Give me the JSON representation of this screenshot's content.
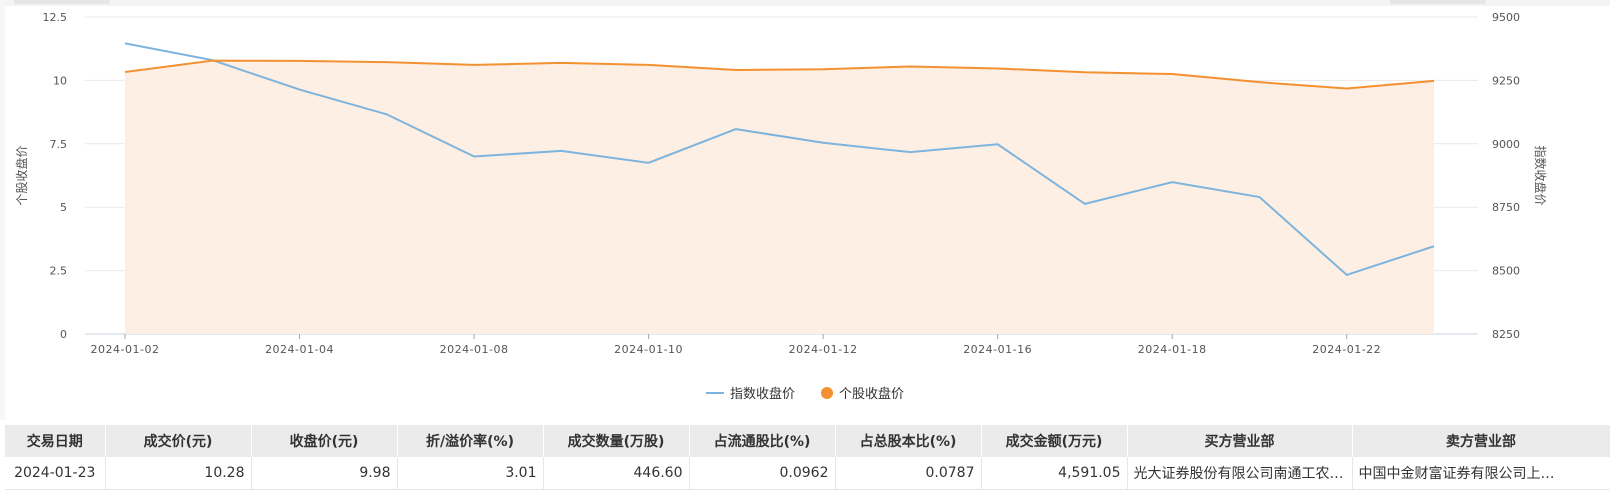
{
  "chart_data": {
    "type": "line",
    "x": [
      "2024-01-02",
      "2024-01-03",
      "2024-01-04",
      "2024-01-05",
      "2024-01-08",
      "2024-01-09",
      "2024-01-10",
      "2024-01-11",
      "2024-01-12",
      "2024-01-15",
      "2024-01-16",
      "2024-01-17",
      "2024-01-18",
      "2024-01-19",
      "2024-01-22",
      "2024-01-23"
    ],
    "x_tick_labels": [
      "2024-01-02",
      "2024-01-04",
      "2024-01-08",
      "2024-01-10",
      "2024-01-12",
      "2024-01-16",
      "2024-01-18",
      "2024-01-22"
    ],
    "series": [
      {
        "name": "指数收盘价",
        "axis": "right",
        "color": "#7db4de",
        "values": [
          9396,
          9330,
          9214,
          9116,
          8950,
          8972,
          8925,
          9058,
          9004,
          8967,
          8998,
          8763,
          8849,
          8790,
          8483,
          8596
        ]
      },
      {
        "name": "个股收盘价",
        "axis": "left",
        "color": "#f39132",
        "fill": "#fdefe3",
        "values": [
          10.33,
          10.78,
          10.77,
          10.72,
          10.61,
          10.69,
          10.61,
          10.41,
          10.44,
          10.55,
          10.47,
          10.32,
          10.25,
          9.93,
          9.68,
          9.98
        ]
      }
    ],
    "ylabel_left": "个股收盘价",
    "ylabel_right": "指数收盘价",
    "ylim_left": [
      0,
      12.5
    ],
    "ylim_right": [
      8250,
      9500
    ],
    "yticks_left": [
      "0",
      "2.5",
      "5",
      "7.5",
      "10",
      "12.5"
    ],
    "yticks_right": [
      "8250",
      "8500",
      "8750",
      "9000",
      "9250",
      "9500"
    ],
    "grid": true,
    "legend_position": "bottom-center"
  },
  "table": {
    "headers": [
      "交易日期",
      "成交价(元)",
      "收盘价(元)",
      "折/溢价率(%)",
      "成交数量(万股)",
      "占流通股比(%)",
      "占总股本比(%)",
      "成交金额(万元)",
      "买方营业部",
      "卖方营业部"
    ],
    "rows": [
      [
        "2024-01-23",
        "10.28",
        "9.98",
        "3.01",
        "446.60",
        "0.0962",
        "0.0787",
        "4,591.05",
        "光大证券股份有限公司南通工农…",
        "中国中金财富证券有限公司上…"
      ]
    ]
  }
}
